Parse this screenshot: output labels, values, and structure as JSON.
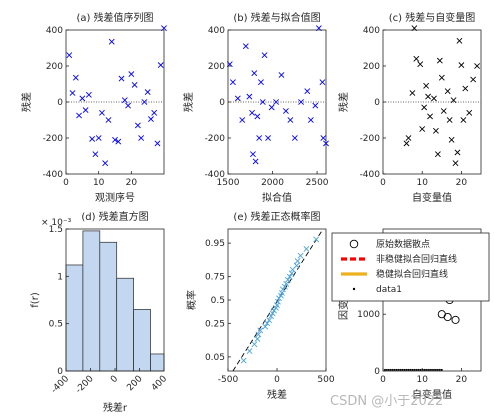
{
  "chart_data": [
    {
      "id": "p1",
      "type": "scatter",
      "title": "(a) 残差值序列图",
      "xlabel": "观测序号",
      "ylabel": "残差",
      "xlim": [
        0,
        30
      ],
      "ylim": [
        -400,
        400
      ],
      "xticks": [
        "0",
        "10",
        "20"
      ],
      "yticks": [
        "-400",
        "-200",
        "0",
        "200",
        "400"
      ],
      "marker": "x",
      "color": "#0000ff",
      "reference_line": {
        "y": 0,
        "style": "dotted"
      },
      "points": [
        [
          1,
          260
        ],
        [
          2,
          50
        ],
        [
          3,
          135
        ],
        [
          4,
          -75
        ],
        [
          5,
          20
        ],
        [
          6,
          -45
        ],
        [
          7,
          40
        ],
        [
          8,
          -205
        ],
        [
          9,
          -290
        ],
        [
          10,
          -200
        ],
        [
          11,
          -60
        ],
        [
          12,
          -340
        ],
        [
          13,
          -100
        ],
        [
          14,
          335
        ],
        [
          15,
          -210
        ],
        [
          16,
          -220
        ],
        [
          17,
          130
        ],
        [
          18,
          10
        ],
        [
          19,
          -20
        ],
        [
          20,
          155
        ],
        [
          21,
          95
        ],
        [
          22,
          -130
        ],
        [
          23,
          -200
        ],
        [
          24,
          0
        ],
        [
          25,
          55
        ],
        [
          26,
          -95
        ],
        [
          27,
          -60
        ],
        [
          28,
          -230
        ],
        [
          29,
          205
        ],
        [
          30,
          410
        ]
      ]
    },
    {
      "id": "p2",
      "type": "scatter",
      "title": "(b) 残差与拟合值图",
      "xlabel": "拟合值",
      "ylabel": "残差",
      "xlim": [
        1500,
        2600
      ],
      "ylim": [
        -400,
        400
      ],
      "xticks": [
        "1500",
        "2000",
        "2500"
      ],
      "yticks": [
        "-400",
        "-200",
        "0",
        "200",
        "400"
      ],
      "marker": "x",
      "color": "#0000ff",
      "reference_line": {
        "y": 0,
        "style": "dotted"
      },
      "points": [
        [
          1520,
          210
        ],
        [
          1555,
          110
        ],
        [
          1610,
          20
        ],
        [
          1660,
          -100
        ],
        [
          1700,
          310
        ],
        [
          1740,
          30
        ],
        [
          1770,
          -60
        ],
        [
          1780,
          -290
        ],
        [
          1795,
          160
        ],
        [
          1810,
          -330
        ],
        [
          1830,
          -80
        ],
        [
          1850,
          -200
        ],
        [
          1870,
          110
        ],
        [
          1890,
          0
        ],
        [
          1910,
          260
        ],
        [
          1950,
          -200
        ],
        [
          1990,
          -30
        ],
        [
          2040,
          0
        ],
        [
          2100,
          150
        ],
        [
          2150,
          -50
        ],
        [
          2200,
          -100
        ],
        [
          2250,
          -200
        ],
        [
          2320,
          0
        ],
        [
          2390,
          60
        ],
        [
          2430,
          -100
        ],
        [
          2480,
          -20
        ],
        [
          2520,
          410
        ],
        [
          2560,
          110
        ],
        [
          2570,
          -200
        ],
        [
          2600,
          -230
        ]
      ]
    },
    {
      "id": "p3",
      "type": "scatter",
      "title": "(c) 残差与自变量图",
      "xlabel": "自变量值",
      "ylabel": "残差",
      "xlim": [
        0,
        25
      ],
      "ylim": [
        -400,
        400
      ],
      "xticks": [
        "0",
        "10",
        "20"
      ],
      "yticks": [
        "-400",
        "-200",
        "0",
        "200",
        "400"
      ],
      "marker": "x",
      "color": "#000000",
      "reference_line": {
        "y": 0,
        "style": "dotted"
      },
      "points": [
        [
          6,
          -230
        ],
        [
          6.5,
          -200
        ],
        [
          7.5,
          50
        ],
        [
          8,
          410
        ],
        [
          8.5,
          240
        ],
        [
          9.5,
          210
        ],
        [
          10,
          -150
        ],
        [
          10.5,
          -30
        ],
        [
          11,
          90
        ],
        [
          11.5,
          30
        ],
        [
          12,
          -80
        ],
        [
          13,
          20
        ],
        [
          13.5,
          -160
        ],
        [
          14,
          -290
        ],
        [
          14.5,
          230
        ],
        [
          15,
          135
        ],
        [
          15.5,
          -50
        ],
        [
          16.5,
          60
        ],
        [
          17,
          -100
        ],
        [
          17.5,
          -210
        ],
        [
          18,
          10
        ],
        [
          18.5,
          -340
        ],
        [
          19,
          -280
        ],
        [
          19.5,
          340
        ],
        [
          20,
          205
        ],
        [
          20.5,
          -100
        ],
        [
          21,
          75
        ],
        [
          22,
          -60
        ],
        [
          23,
          125
        ],
        [
          24,
          200
        ]
      ]
    },
    {
      "id": "p4",
      "type": "bar",
      "title": "(d) 残差直方图",
      "xlabel": "残差r",
      "ylabel": "f(r)",
      "exponent_label": "× 10⁻³",
      "xlim": [
        -400,
        400
      ],
      "ylim": [
        0,
        0.0015
      ],
      "xticks": [
        "-400",
        "-200",
        "0",
        "200",
        "400"
      ],
      "yticks": [
        "0",
        "0.5",
        "1",
        "1.5"
      ],
      "bin_edges": [
        -400,
        -262,
        -124,
        14,
        152,
        290,
        428
      ],
      "values": [
        0.00112,
        0.00148,
        0.00136,
        0.00098,
        0.00065,
        0.00018
      ],
      "color": "#c3d8f0"
    },
    {
      "id": "p5",
      "type": "scatter",
      "title": "(e) 残差正态概率图",
      "xlabel": "残差",
      "ylabel": "概率",
      "xlim": [
        -500,
        500
      ],
      "ylim": [
        0.02,
        0.98
      ],
      "xticks": [
        "-500",
        "0",
        "500"
      ],
      "yticks": [
        "0.05",
        "0.25",
        "0.5",
        "0.75",
        "0.95"
      ],
      "marker": "x",
      "color": "#4da3d9",
      "points": [
        [
          -340,
          0.04
        ],
        [
          -280,
          0.07
        ],
        [
          -230,
          0.1
        ],
        [
          -200,
          0.13
        ],
        [
          -190,
          0.16
        ],
        [
          -170,
          0.19
        ],
        [
          -120,
          0.22
        ],
        [
          -100,
          0.25
        ],
        [
          -80,
          0.28
        ],
        [
          -60,
          0.32
        ],
        [
          -45,
          0.35
        ],
        [
          -30,
          0.38
        ],
        [
          -10,
          0.41
        ],
        [
          0,
          0.44
        ],
        [
          10,
          0.48
        ],
        [
          20,
          0.52
        ],
        [
          40,
          0.55
        ],
        [
          50,
          0.58
        ],
        [
          60,
          0.62
        ],
        [
          80,
          0.65
        ],
        [
          95,
          0.68
        ],
        [
          110,
          0.72
        ],
        [
          130,
          0.75
        ],
        [
          150,
          0.78
        ],
        [
          160,
          0.81
        ],
        [
          200,
          0.84
        ],
        [
          210,
          0.87
        ],
        [
          240,
          0.9
        ],
        [
          300,
          0.93
        ],
        [
          400,
          0.96
        ]
      ],
      "reference_line": {
        "points": [
          [
            -450,
            0.005
          ],
          [
            470,
            0.995
          ]
        ],
        "style": "dashed"
      }
    },
    {
      "id": "p6",
      "type": "scatter",
      "title": "",
      "xlabel": "自变量值",
      "ylabel": "因变量值",
      "xlim": [
        0,
        25
      ],
      "ylim": [
        0,
        2500
      ],
      "xticks": [
        "0",
        "10",
        "20"
      ],
      "yticks": [
        "0",
        "1000",
        "2000"
      ],
      "series": [
        {
          "name": "原始数据散点",
          "marker": "circle",
          "color": "#000000",
          "points": [
            [
              12,
              2200
            ],
            [
              15,
              1000
            ],
            [
              16.5,
              950
            ],
            [
              17,
              1250
            ],
            [
              18.5,
              900
            ],
            [
              20,
              1600
            ],
            [
              21,
              1500
            ],
            [
              23,
              1450
            ],
            [
              24,
              1550
            ]
          ]
        },
        {
          "name": "非稳健拟合回归直线",
          "marker": "dashed-line",
          "color": "#ff0000",
          "points": [
            [
              20,
              1550
            ],
            [
              24,
              1570
            ]
          ]
        },
        {
          "name": "稳健拟合回归直线",
          "marker": "line",
          "color": "#edb120",
          "points": [
            [
              20,
              1500
            ],
            [
              24,
              1520
            ]
          ]
        },
        {
          "name": "data1",
          "marker": "dot",
          "color": "#000000",
          "points": [
            [
              0.5,
              20
            ],
            [
              1,
              20
            ],
            [
              1.5,
              20
            ],
            [
              2,
              20
            ],
            [
              2.5,
              20
            ],
            [
              3,
              20
            ],
            [
              3.5,
              20
            ],
            [
              4,
              20
            ],
            [
              4.5,
              20
            ],
            [
              5,
              20
            ],
            [
              5.5,
              20
            ],
            [
              6,
              20
            ],
            [
              6.5,
              20
            ],
            [
              7,
              20
            ],
            [
              7.5,
              20
            ],
            [
              8,
              20
            ],
            [
              8.5,
              20
            ],
            [
              9,
              20
            ],
            [
              9.5,
              20
            ],
            [
              10,
              20
            ],
            [
              10.5,
              20
            ],
            [
              11,
              20
            ],
            [
              11.5,
              20
            ],
            [
              12,
              20
            ],
            [
              12.5,
              20
            ],
            [
              13,
              20
            ],
            [
              13.5,
              20
            ],
            [
              14,
              20
            ],
            [
              14.5,
              20
            ],
            [
              15,
              20
            ]
          ]
        }
      ]
    }
  ],
  "watermark": "CSDN @小于2022"
}
